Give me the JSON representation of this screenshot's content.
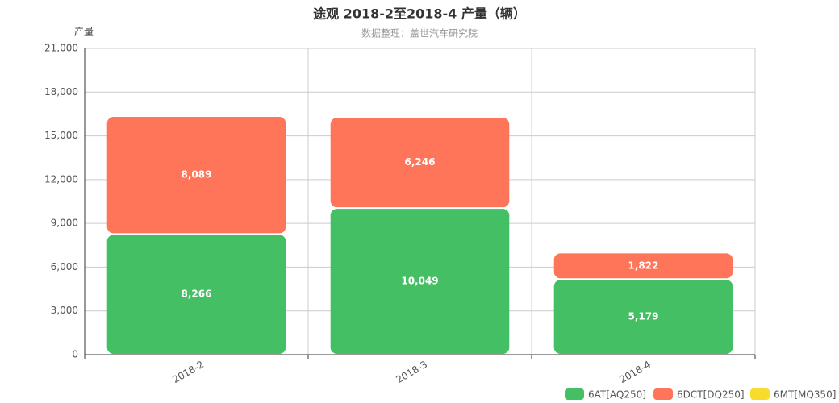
{
  "chart_data": {
    "type": "stacked_bar",
    "title": "途观 2018-2至2018-4 产量（辆）",
    "subtitle": "数据整理：盖世汽车研究院",
    "y_label": "产量",
    "categories": [
      "2018-2",
      "2018-3",
      "2018-4"
    ],
    "series": [
      {
        "name": "6AT[AQ250]",
        "color": "#44bf63",
        "values": [
          8266,
          10049,
          5179
        ],
        "value_labels": [
          "8,266",
          "10,049",
          "5,179"
        ]
      },
      {
        "name": "6DCT[DQ250]",
        "color": "#ff7559",
        "values": [
          8089,
          6246,
          1822
        ],
        "value_labels": [
          "8,089",
          "6,246",
          "1,822"
        ]
      },
      {
        "name": "6MT[MQ350]",
        "color": "#f7dc2e",
        "values": [
          null,
          null,
          null
        ]
      }
    ],
    "ylim": [
      0,
      21000
    ],
    "yticks": [
      0,
      {
        "value": 3000,
        "label": "3,000"
      },
      {
        "value": 6000,
        "label": "6,000"
      },
      {
        "value": 9000,
        "label": "9,000"
      },
      {
        "value": 12000,
        "label": "12,000"
      },
      {
        "value": 15000,
        "label": "15,000"
      },
      {
        "value": 18000,
        "label": "18,000"
      },
      {
        "value": 21000,
        "label": "21,000"
      }
    ],
    "grid": true,
    "legend": "bottom-right"
  }
}
